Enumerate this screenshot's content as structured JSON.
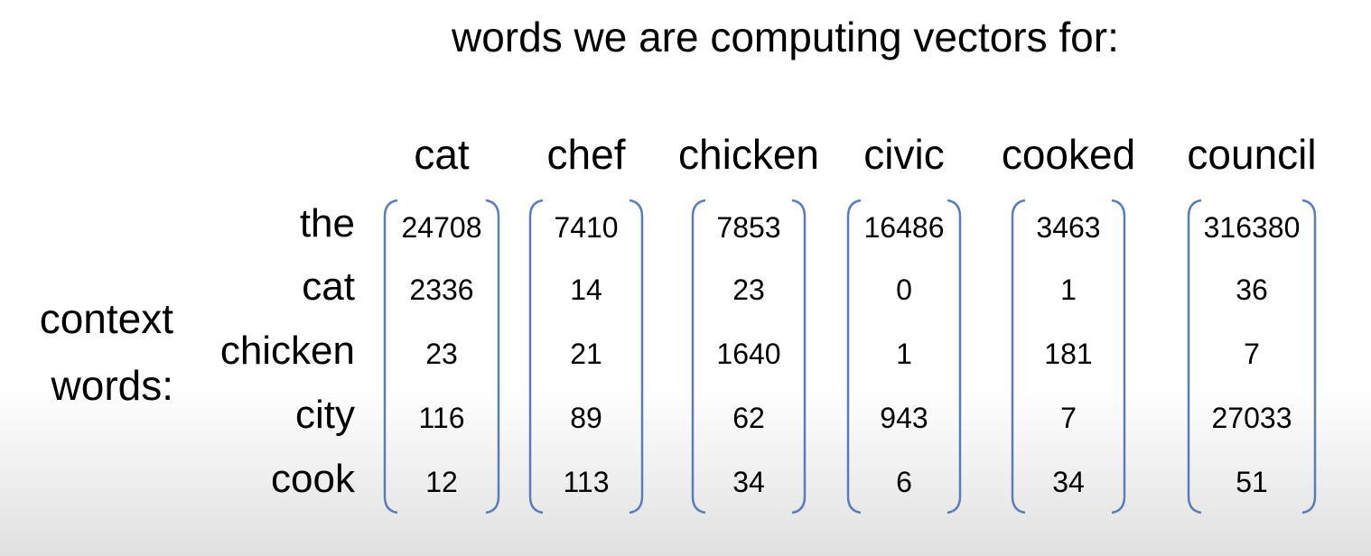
{
  "title": "words we are computing vectors for:",
  "context_label": [
    "context",
    "words:"
  ],
  "columns": [
    "cat",
    "chef",
    "chicken",
    "civic",
    "cooked",
    "council"
  ],
  "rows": [
    "the",
    "cat",
    "chicken",
    "city",
    "cook"
  ],
  "values": [
    [
      24708,
      7410,
      7853,
      16486,
      3463,
      316380
    ],
    [
      2336,
      14,
      23,
      0,
      1,
      36
    ],
    [
      23,
      21,
      1640,
      1,
      181,
      7
    ],
    [
      116,
      89,
      62,
      943,
      7,
      27033
    ],
    [
      12,
      113,
      34,
      6,
      34,
      51
    ]
  ],
  "colors": {
    "bracket": "#5b7db6",
    "text": "#000000"
  }
}
